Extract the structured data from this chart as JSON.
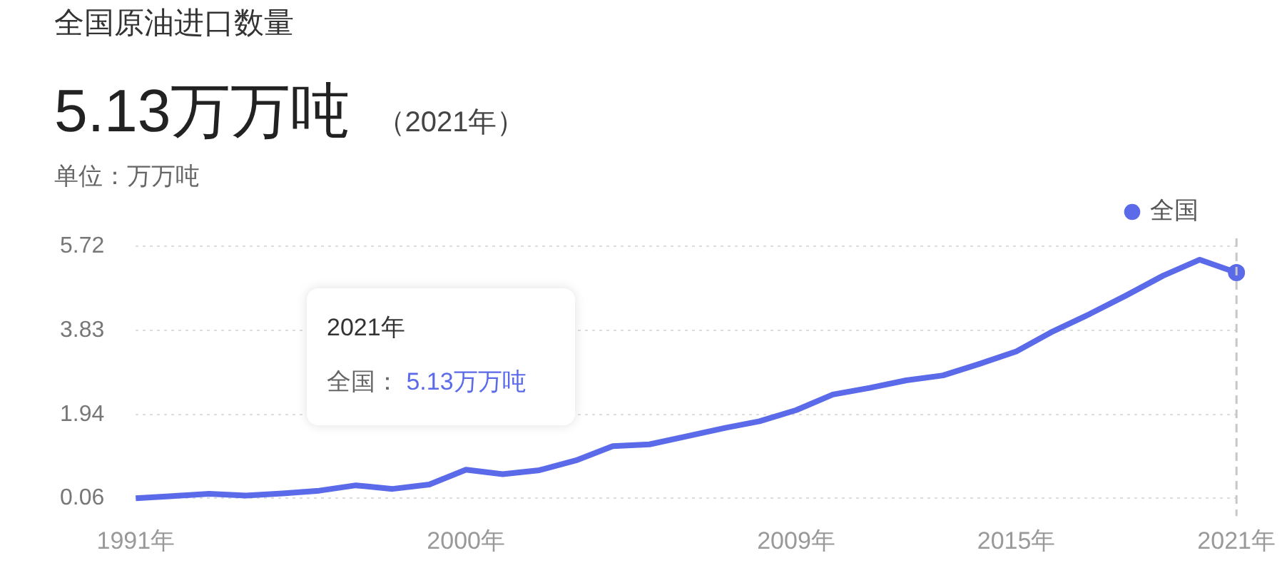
{
  "chart_data": {
    "type": "line",
    "title": "全国原油进口数量",
    "subtitle": "5.13万万吨",
    "ylabel": "单位：万万吨",
    "annotations": [
      "（2021年）",
      "2021年",
      "全国： 5.13万万吨"
    ],
    "categories": [
      "1991年",
      null,
      null,
      null,
      null,
      null,
      null,
      null,
      null,
      "2000年",
      null,
      null,
      null,
      null,
      null,
      null,
      null,
      null,
      "2009年",
      null,
      null,
      null,
      null,
      null,
      "2015年",
      null,
      null,
      null,
      null,
      null,
      "2021年"
    ],
    "series": [
      {
        "name": "全国",
        "color": "#5b6ae8",
        "values": [
          0.06,
          0.11,
          0.16,
          0.12,
          0.17,
          0.23,
          0.35,
          0.27,
          0.37,
          0.7,
          0.6,
          0.69,
          0.91,
          1.23,
          1.27,
          1.45,
          1.63,
          1.79,
          2.04,
          2.39,
          2.54,
          2.71,
          2.82,
          3.08,
          3.36,
          3.81,
          4.2,
          4.62,
          5.06,
          5.42,
          5.13
        ]
      }
    ],
    "ylim": [
      -0.34,
      5.9
    ],
    "yticks": [
      0.06,
      1.94,
      3.83,
      5.72
    ],
    "grid": "y",
    "legend": "top right",
    "marker": "none",
    "line_style": "solid",
    "ref_lines": [
      {
        "axis": "x",
        "value": "2021年",
        "color": "#c8c8c8",
        "line_style": "dashed"
      }
    ]
  }
}
